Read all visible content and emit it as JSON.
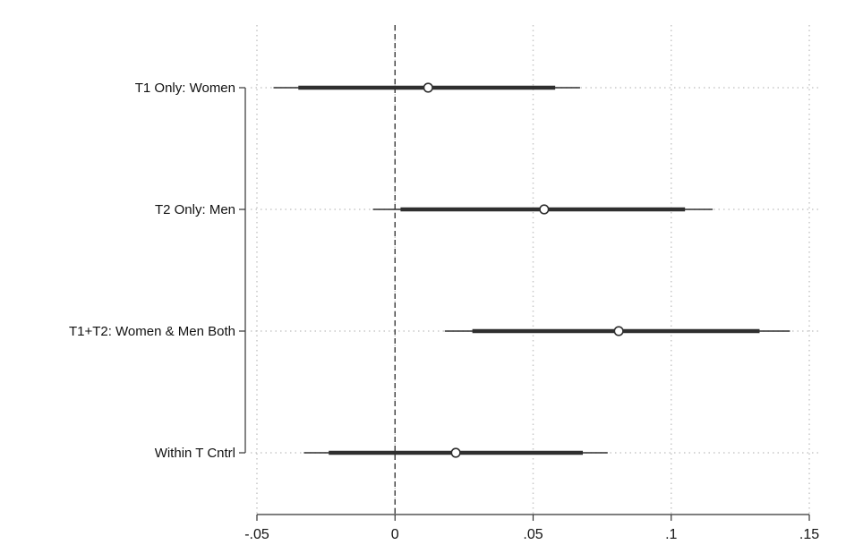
{
  "chart_data": {
    "type": "coefficient-plot",
    "title": "",
    "xlabel": "",
    "ylabel": "",
    "xlim": [
      -0.05,
      0.15
    ],
    "x_ticks": [
      {
        "value": -0.05,
        "label": "-.05"
      },
      {
        "value": 0,
        "label": "0"
      },
      {
        "value": 0.05,
        "label": ".05"
      },
      {
        "value": 0.1,
        "label": ".1"
      },
      {
        "value": 0.15,
        "label": ".15"
      }
    ],
    "reference_line": {
      "value": 0,
      "style": "dashed"
    },
    "grid": true,
    "series": [
      {
        "label": "T1 Only: Women",
        "estimate": 0.012,
        "ci90": [
          -0.035,
          0.058
        ],
        "ci95": [
          -0.044,
          0.067
        ]
      },
      {
        "label": "T2 Only: Men",
        "estimate": 0.054,
        "ci90": [
          0.002,
          0.105
        ],
        "ci95": [
          -0.008,
          0.115
        ]
      },
      {
        "label": "T1+T2: Women & Men Both",
        "estimate": 0.081,
        "ci90": [
          0.028,
          0.132
        ],
        "ci95": [
          0.018,
          0.143
        ]
      },
      {
        "label": "Within T Cntrl",
        "estimate": 0.022,
        "ci90": [
          -0.024,
          0.068
        ],
        "ci95": [
          -0.033,
          0.077
        ]
      }
    ],
    "colors": {
      "mark": "#2f2f2f",
      "grid": "#c8c8c8",
      "axis": "#333333"
    }
  }
}
